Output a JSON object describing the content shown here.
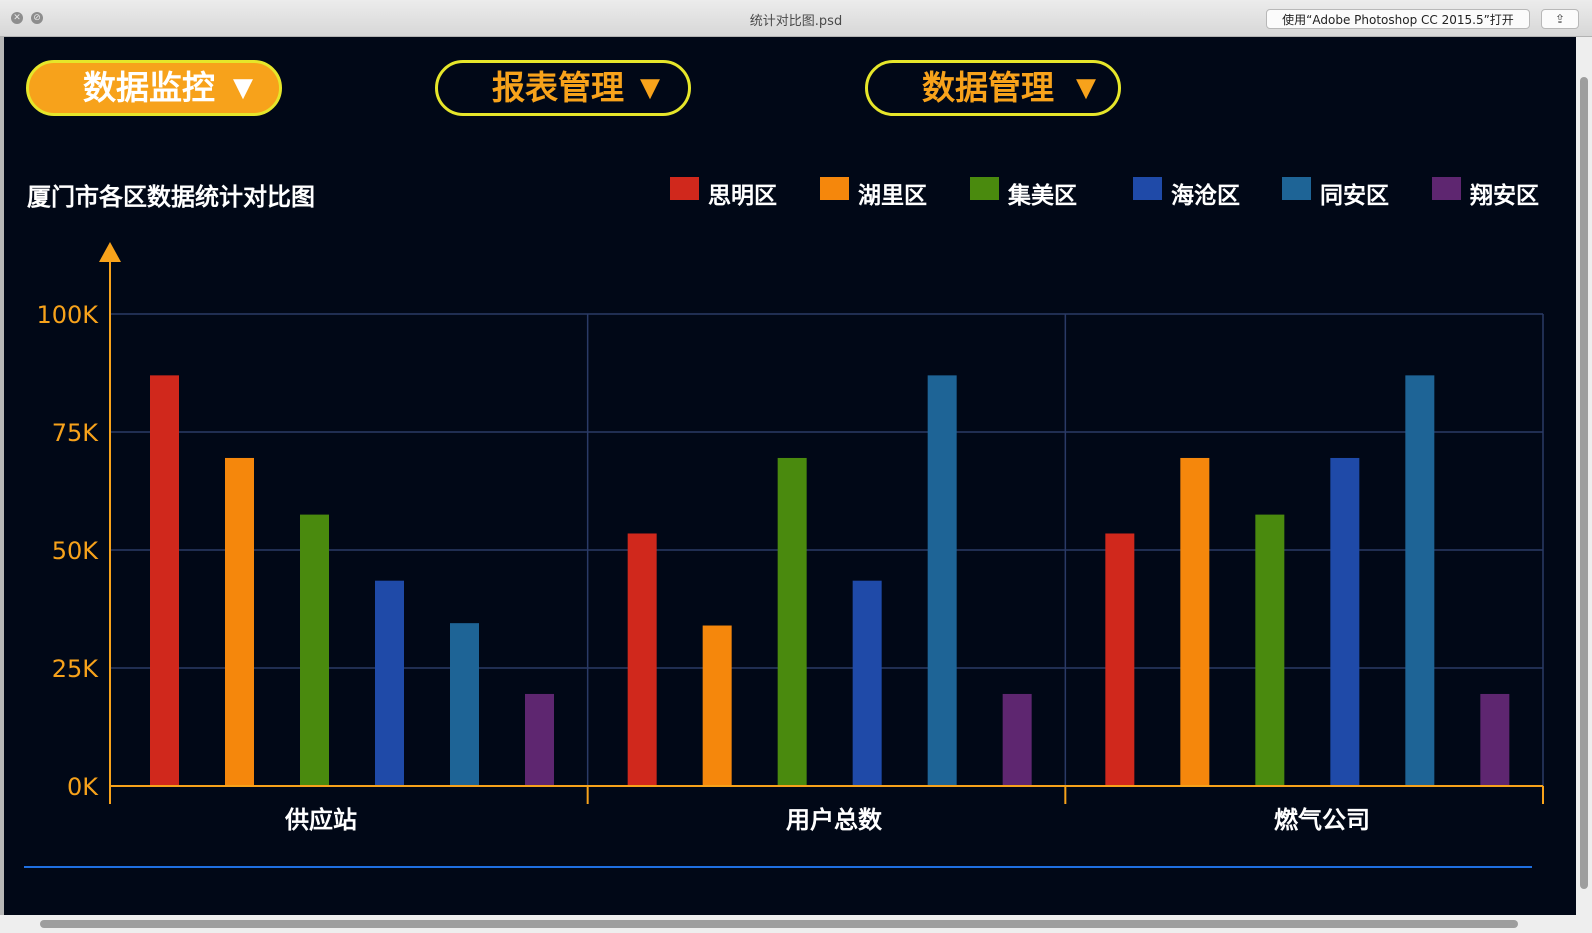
{
  "window": {
    "title": "统计对比图.psd",
    "open_with": "使用“Adobe Photoshop CC 2015.5”打开",
    "share_icon": "share-icon"
  },
  "nav": [
    {
      "label": "数据监控",
      "arrow": "▼",
      "active": true
    },
    {
      "label": "报表管理",
      "arrow": "▼",
      "active": false
    },
    {
      "label": "数据管理",
      "arrow": "▼",
      "active": false
    }
  ],
  "colors": {
    "background": "#010817",
    "axis": "#f7a21b",
    "grid": "#2a3a66",
    "nav_border": "#e6e62a",
    "footer_line": "#1f6fe0"
  },
  "chart_data": {
    "type": "bar",
    "title": "厦门市各区数据统计对比图",
    "categories": [
      "供应站",
      "用户总数",
      "燃气公司"
    ],
    "ylim": [
      0,
      100000
    ],
    "yticks": [
      "0K",
      "25K",
      "50K",
      "75K",
      "100K"
    ],
    "grid": true,
    "legend_position": "top-right",
    "series": [
      {
        "name": "思明区",
        "color": "#d0281c",
        "values": [
          87000,
          53500,
          53500
        ]
      },
      {
        "name": "湖里区",
        "color": "#f5870c",
        "values": [
          69500,
          34000,
          69500
        ]
      },
      {
        "name": "集美区",
        "color": "#4a8a0e",
        "values": [
          57500,
          69500,
          57500
        ]
      },
      {
        "name": "海沧区",
        "color": "#1f4aa8",
        "values": [
          43500,
          43500,
          69500
        ]
      },
      {
        "name": "同安区",
        "color": "#1e6496",
        "values": [
          34500,
          87000,
          87000
        ]
      },
      {
        "name": "翔安区",
        "color": "#5e2670",
        "values": [
          19500,
          19500,
          19500
        ]
      }
    ]
  }
}
